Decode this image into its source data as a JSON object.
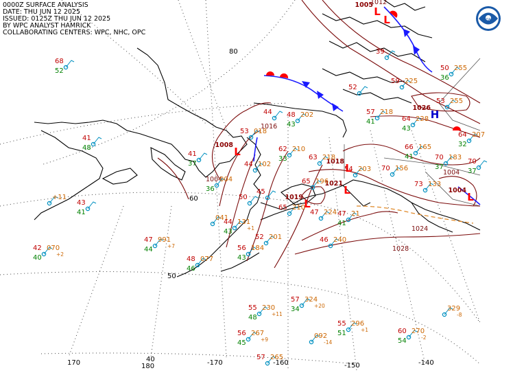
{
  "header": {
    "line1": "0000Z SURFACE ANALYSIS",
    "line2": "DATE: THU JUN 12 2025",
    "line3": "ISSUED: 0125Z THU JUN 12 2025",
    "line4": "BY WPC ANALYST HAMRICK",
    "line5": "COLLABORATING CENTERS: WPC, NHC, OPC"
  },
  "logo": "NOAA",
  "colors": {
    "temp": "#c00000",
    "dew": "#008000",
    "pressure": "#cc6600",
    "isobar": "#7a0a0a",
    "cold_front": "#1a1aff",
    "warm_front": "#ff0000",
    "low": "#ff0000",
    "high": "#0000cc",
    "station": "#0090c0"
  },
  "latitude_labels": [
    {
      "text": "80"
    },
    {
      "text": "60"
    },
    {
      "text": "50"
    },
    {
      "text": "40"
    }
  ],
  "longitude_labels": [
    {
      "text": "170"
    },
    {
      "text": "180"
    },
    {
      "text": "-170"
    },
    {
      "text": "-160"
    },
    {
      "text": "-150"
    },
    {
      "text": "-140"
    }
  ],
  "systems": [
    {
      "type": "L",
      "pressure": ""
    },
    {
      "type": "L",
      "pressure": "1008"
    },
    {
      "type": "L",
      "pressure": "1019"
    },
    {
      "type": "L",
      "pressure": "1021"
    },
    {
      "type": "L",
      "pressure": "1018"
    },
    {
      "type": "H",
      "pressure": "1026"
    },
    {
      "type": "L",
      "pressure": "1004"
    },
    {
      "type": "L",
      "pressure": "1005"
    }
  ],
  "isobar_labels": [
    {
      "text": "1016"
    },
    {
      "text": "1004"
    },
    {
      "text": "1028"
    },
    {
      "text": "1024"
    },
    {
      "text": "1004"
    },
    {
      "text": "1012"
    }
  ],
  "stations": [
    {
      "t": "68",
      "d": "52",
      "p": ""
    },
    {
      "t": "41",
      "d": "48",
      "p": ""
    },
    {
      "t": "",
      "d": "",
      "p": "+11"
    },
    {
      "t": "43",
      "d": "41",
      "p": ""
    },
    {
      "t": "42",
      "d": "40",
      "p": "070",
      "tend": "+2"
    },
    {
      "t": "47",
      "d": "44",
      "p": "991",
      "tend": "+7"
    },
    {
      "t": "48",
      "d": "46",
      "p": "077"
    },
    {
      "t": "41",
      "d": "37",
      "p": ""
    },
    {
      "t": "",
      "d": "36",
      "p": "004"
    },
    {
      "t": "",
      "d": "",
      "p": "041"
    },
    {
      "t": "44",
      "d": "43",
      "p": "131",
      "tend": "+1"
    },
    {
      "t": "56",
      "d": "43",
      "p": "184"
    },
    {
      "t": "52",
      "d": "",
      "p": "201"
    },
    {
      "t": "50",
      "d": "",
      "p": ""
    },
    {
      "t": "53",
      "d": "",
      "p": "018"
    },
    {
      "t": "44",
      "d": "",
      "p": "102"
    },
    {
      "t": "45",
      "d": "",
      "p": ""
    },
    {
      "t": "62",
      "d": "33",
      "p": "210"
    },
    {
      "t": "63",
      "d": "",
      "p": "218"
    },
    {
      "t": "65",
      "d": "",
      "p": "196"
    },
    {
      "t": "65",
      "d": "",
      "p": "210"
    },
    {
      "t": "47",
      "d": "",
      "p": "224"
    },
    {
      "t": "46",
      "d": "",
      "p": "240"
    },
    {
      "t": "47",
      "d": "41",
      "p": "21"
    },
    {
      "t": "54",
      "d": "",
      "p": "203"
    },
    {
      "t": "70",
      "d": "",
      "p": "156"
    },
    {
      "t": "73",
      "d": "",
      "p": "133"
    },
    {
      "t": "70",
      "d": "37",
      "p": "183"
    },
    {
      "t": "66",
      "d": "41",
      "p": "165"
    },
    {
      "t": "64",
      "d": "43",
      "p": "228"
    },
    {
      "t": "57",
      "d": "41",
      "p": "218"
    },
    {
      "t": "48",
      "d": "43",
      "p": "202"
    },
    {
      "t": "44",
      "d": "",
      "p": ""
    },
    {
      "t": "52",
      "d": "",
      "p": ""
    },
    {
      "t": "59",
      "d": "",
      "p": "225"
    },
    {
      "t": "39",
      "d": "",
      "p": ""
    },
    {
      "t": "50",
      "d": "36",
      "p": "255"
    },
    {
      "t": "53",
      "d": "",
      "p": "255"
    },
    {
      "t": "64",
      "d": "32",
      "p": "207"
    },
    {
      "t": "70",
      "d": "37",
      "p": ""
    },
    {
      "t": "55",
      "d": "48",
      "p": "230",
      "tend": "+11"
    },
    {
      "t": "57",
      "d": "34",
      "p": "324",
      "tend": "+20"
    },
    {
      "t": "56",
      "d": "45",
      "p": "267",
      "tend": "+9"
    },
    {
      "t": "",
      "d": "",
      "p": "092",
      "tend": "-14"
    },
    {
      "t": "55",
      "d": "51",
      "p": "296",
      "tend": "+1"
    },
    {
      "t": "57",
      "d": "",
      "p": "265"
    },
    {
      "t": "60",
      "d": "54",
      "p": "270",
      "tend": "-2"
    },
    {
      "t": "",
      "d": "",
      "p": "329",
      "tend": "-8"
    }
  ]
}
